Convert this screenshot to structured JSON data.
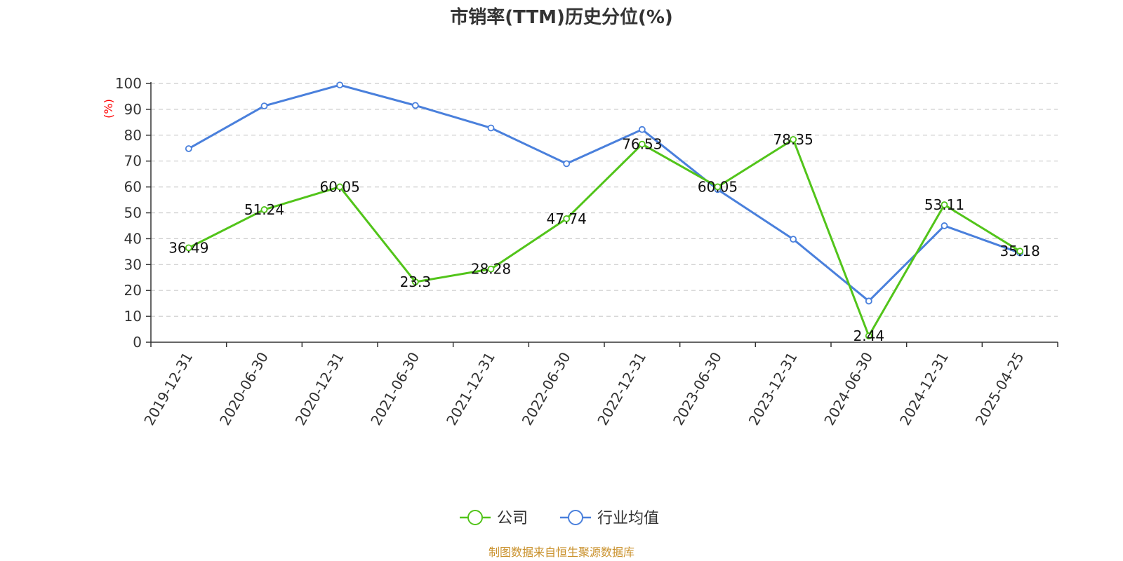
{
  "chart_data": {
    "type": "line",
    "title": "市销率(TTM)历史分位(%)",
    "ylabel": "(%)",
    "xlabel": "",
    "ylim": [
      0,
      100
    ],
    "yticks": [
      0,
      10,
      20,
      30,
      40,
      50,
      60,
      70,
      80,
      90,
      100
    ],
    "grid": true,
    "legend_position": "bottom-center",
    "categories": [
      "2019-12-31",
      "2020-06-30",
      "2020-12-31",
      "2021-06-30",
      "2021-12-31",
      "2022-06-30",
      "2022-12-31",
      "2023-06-30",
      "2023-12-31",
      "2024-06-30",
      "2024-12-31",
      "2025-04-25"
    ],
    "series": [
      {
        "name": "公司",
        "color": "#52c41a",
        "values": [
          36.49,
          51.24,
          60.05,
          23.3,
          28.28,
          47.74,
          76.53,
          60.05,
          78.35,
          2.44,
          53.11,
          35.18
        ],
        "labels": [
          "36.49",
          "51.24",
          "60.05",
          "23.3",
          "28.28",
          "47.74",
          "76.53",
          "60.05",
          "78.35",
          "2.44",
          "53.11",
          "35.18"
        ]
      },
      {
        "name": "行业均值",
        "color": "#4a80dc",
        "values": [
          74.8,
          91.3,
          99.4,
          91.5,
          82.8,
          69.0,
          82.2,
          59.0,
          39.8,
          15.9,
          45.0,
          34.5
        ]
      }
    ]
  },
  "source_note": "制图数据来自恒生聚源数据库"
}
